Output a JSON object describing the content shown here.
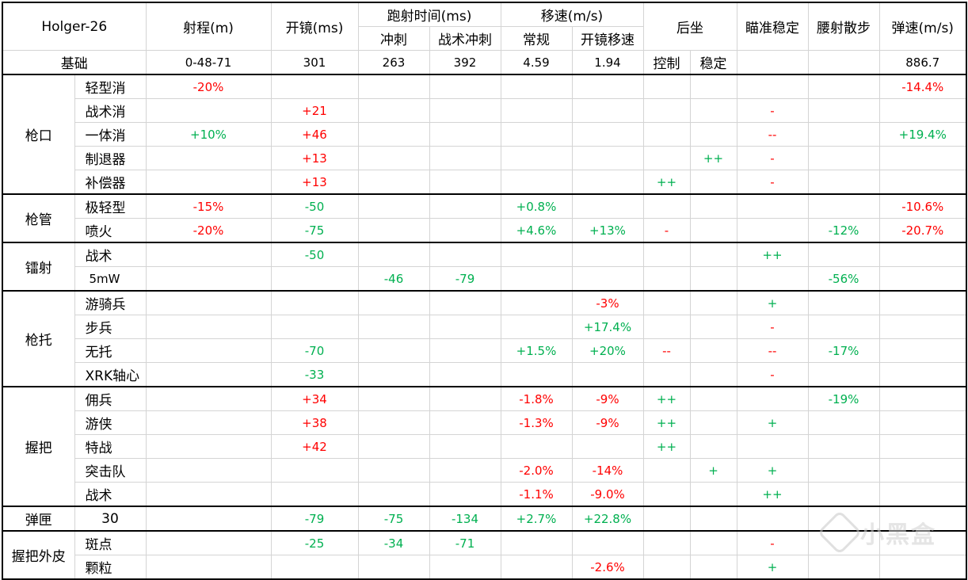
{
  "header": {
    "weapon": "Holger-26",
    "range": "射程(m)",
    "ads": "开镜(ms)",
    "sprint_to_fire": "跑射时间(ms)",
    "sprint": "冲刺",
    "tac_sprint": "战术冲刺",
    "move_speed": "移速(m/s)",
    "normal": "常规",
    "ads_move": "开镜移速",
    "recoil": "后坐",
    "aim_stability": "瞄准稳定",
    "hip_spread": "腰射散步",
    "bullet_velocity": "弹速(m/s)"
  },
  "base": {
    "label": "基础",
    "range": "0-48-71",
    "ads": "301",
    "sprint": "263",
    "tac_sprint": "392",
    "normal": "4.59",
    "ads_move": "1.94",
    "control": "控制",
    "stability": "稳定",
    "bullet_velocity": "886.7"
  },
  "colors": {
    "negative": "#ff0000",
    "positive": "#00b050"
  },
  "groups": [
    {
      "name": "枪口",
      "rows": [
        {
          "name": "轻型消",
          "cells": [
            [
              "-20%",
              "red"
            ],
            [
              "",
              ""
            ],
            [
              "",
              ""
            ],
            [
              "",
              ""
            ],
            [
              "",
              ""
            ],
            [
              "",
              ""
            ],
            [
              "",
              ""
            ],
            [
              "",
              ""
            ],
            [
              "",
              ""
            ],
            [
              "",
              ""
            ],
            [
              "-14.4%",
              "red"
            ]
          ]
        },
        {
          "name": "战术消",
          "cells": [
            [
              "",
              ""
            ],
            [
              "+21",
              "red"
            ],
            [
              "",
              ""
            ],
            [
              "",
              ""
            ],
            [
              "",
              ""
            ],
            [
              "",
              ""
            ],
            [
              "",
              ""
            ],
            [
              "",
              ""
            ],
            [
              "-",
              "red"
            ],
            [
              "",
              ""
            ],
            [
              "",
              ""
            ]
          ]
        },
        {
          "name": "一体消",
          "cells": [
            [
              "+10%",
              "green"
            ],
            [
              "+46",
              "red"
            ],
            [
              "",
              ""
            ],
            [
              "",
              ""
            ],
            [
              "",
              ""
            ],
            [
              "",
              ""
            ],
            [
              "",
              ""
            ],
            [
              "",
              ""
            ],
            [
              "--",
              "red"
            ],
            [
              "",
              ""
            ],
            [
              "+19.4%",
              "green"
            ]
          ]
        },
        {
          "name": "制退器",
          "cells": [
            [
              "",
              ""
            ],
            [
              "+13",
              "red"
            ],
            [
              "",
              ""
            ],
            [
              "",
              ""
            ],
            [
              "",
              ""
            ],
            [
              "",
              ""
            ],
            [
              "",
              ""
            ],
            [
              "++",
              "green"
            ],
            [
              "-",
              "red"
            ],
            [
              "",
              ""
            ],
            [
              "",
              ""
            ]
          ]
        },
        {
          "name": "补偿器",
          "cells": [
            [
              "",
              ""
            ],
            [
              "+13",
              "red"
            ],
            [
              "",
              ""
            ],
            [
              "",
              ""
            ],
            [
              "",
              ""
            ],
            [
              "",
              ""
            ],
            [
              "++",
              "green"
            ],
            [
              "",
              ""
            ],
            [
              "-",
              "red"
            ],
            [
              "",
              ""
            ],
            [
              "",
              ""
            ]
          ]
        }
      ]
    },
    {
      "name": "枪管",
      "rows": [
        {
          "name": "极轻型",
          "cells": [
            [
              "-15%",
              "red"
            ],
            [
              "-50",
              "green"
            ],
            [
              "",
              ""
            ],
            [
              "",
              ""
            ],
            [
              "+0.8%",
              "green"
            ],
            [
              "",
              ""
            ],
            [
              "",
              ""
            ],
            [
              "",
              ""
            ],
            [
              "",
              ""
            ],
            [
              "",
              ""
            ],
            [
              "-10.6%",
              "red"
            ]
          ]
        },
        {
          "name": "喷火",
          "cells": [
            [
              "-20%",
              "red"
            ],
            [
              "-75",
              "green"
            ],
            [
              "",
              ""
            ],
            [
              "",
              ""
            ],
            [
              "+4.6%",
              "green"
            ],
            [
              "+13%",
              "green"
            ],
            [
              "-",
              "red"
            ],
            [
              "",
              ""
            ],
            [
              "",
              ""
            ],
            [
              "-12%",
              "green"
            ],
            [
              "-20.7%",
              "red"
            ]
          ]
        }
      ]
    },
    {
      "name": "镭射",
      "rows": [
        {
          "name": "战术",
          "cells": [
            [
              "",
              ""
            ],
            [
              "-50",
              "green"
            ],
            [
              "",
              ""
            ],
            [
              "",
              ""
            ],
            [
              "",
              ""
            ],
            [
              "",
              ""
            ],
            [
              "",
              ""
            ],
            [
              "",
              ""
            ],
            [
              "++",
              "green"
            ],
            [
              "",
              ""
            ],
            [
              "",
              ""
            ]
          ]
        },
        {
          "name": "5mW",
          "small": true,
          "cells": [
            [
              "",
              ""
            ],
            [
              "",
              ""
            ],
            [
              "-46",
              "green"
            ],
            [
              "-79",
              "green"
            ],
            [
              "",
              ""
            ],
            [
              "",
              ""
            ],
            [
              "",
              ""
            ],
            [
              "",
              ""
            ],
            [
              "",
              ""
            ],
            [
              "-56%",
              "green"
            ],
            [
              "",
              ""
            ]
          ]
        }
      ]
    },
    {
      "name": "枪托",
      "rows": [
        {
          "name": "游骑兵",
          "cells": [
            [
              "",
              ""
            ],
            [
              "",
              ""
            ],
            [
              "",
              ""
            ],
            [
              "",
              ""
            ],
            [
              "",
              ""
            ],
            [
              "-3%",
              "red"
            ],
            [
              "",
              ""
            ],
            [
              "",
              ""
            ],
            [
              "+",
              "green"
            ],
            [
              "",
              ""
            ],
            [
              "",
              ""
            ]
          ]
        },
        {
          "name": "步兵",
          "cells": [
            [
              "",
              ""
            ],
            [
              "",
              ""
            ],
            [
              "",
              ""
            ],
            [
              "",
              ""
            ],
            [
              "",
              ""
            ],
            [
              "+17.4%",
              "green"
            ],
            [
              "",
              ""
            ],
            [
              "",
              ""
            ],
            [
              "-",
              "red"
            ],
            [
              "",
              ""
            ],
            [
              "",
              ""
            ]
          ]
        },
        {
          "name": "无托",
          "cells": [
            [
              "",
              ""
            ],
            [
              "-70",
              "green"
            ],
            [
              "",
              ""
            ],
            [
              "",
              ""
            ],
            [
              "+1.5%",
              "green"
            ],
            [
              "+20%",
              "green"
            ],
            [
              "--",
              "red"
            ],
            [
              "",
              ""
            ],
            [
              "--",
              "red"
            ],
            [
              "-17%",
              "green"
            ],
            [
              "",
              ""
            ]
          ]
        },
        {
          "name": "XRK轴心",
          "cells": [
            [
              "",
              ""
            ],
            [
              "-33",
              "green"
            ],
            [
              "",
              ""
            ],
            [
              "",
              ""
            ],
            [
              "",
              ""
            ],
            [
              "",
              ""
            ],
            [
              "",
              ""
            ],
            [
              "",
              ""
            ],
            [
              "-",
              "red"
            ],
            [
              "",
              ""
            ],
            [
              "",
              ""
            ]
          ]
        }
      ]
    },
    {
      "name": "握把",
      "rows": [
        {
          "name": "佣兵",
          "cells": [
            [
              "",
              ""
            ],
            [
              "+34",
              "red"
            ],
            [
              "",
              ""
            ],
            [
              "",
              ""
            ],
            [
              "-1.8%",
              "red"
            ],
            [
              "-9%",
              "red"
            ],
            [
              "++",
              "green"
            ],
            [
              "",
              ""
            ],
            [
              "",
              ""
            ],
            [
              "-19%",
              "green"
            ],
            [
              "",
              ""
            ]
          ]
        },
        {
          "name": "游侠",
          "cells": [
            [
              "",
              ""
            ],
            [
              "+38",
              "red"
            ],
            [
              "",
              ""
            ],
            [
              "",
              ""
            ],
            [
              "-1.3%",
              "red"
            ],
            [
              "-9%",
              "red"
            ],
            [
              "++",
              "green"
            ],
            [
              "",
              ""
            ],
            [
              "+",
              "green"
            ],
            [
              "",
              ""
            ],
            [
              "",
              ""
            ]
          ]
        },
        {
          "name": "特战",
          "cells": [
            [
              "",
              ""
            ],
            [
              "+42",
              "red"
            ],
            [
              "",
              ""
            ],
            [
              "",
              ""
            ],
            [
              "",
              ""
            ],
            [
              "",
              ""
            ],
            [
              "++",
              "green"
            ],
            [
              "",
              ""
            ],
            [
              "",
              ""
            ],
            [
              "",
              ""
            ],
            [
              "",
              ""
            ]
          ]
        },
        {
          "name": "突击队",
          "cells": [
            [
              "",
              ""
            ],
            [
              "",
              ""
            ],
            [
              "",
              ""
            ],
            [
              "",
              ""
            ],
            [
              "-2.0%",
              "red"
            ],
            [
              "-14%",
              "red"
            ],
            [
              "",
              ""
            ],
            [
              "+",
              "green"
            ],
            [
              "+",
              "green"
            ],
            [
              "",
              ""
            ],
            [
              "",
              ""
            ]
          ]
        },
        {
          "name": "战术",
          "cells": [
            [
              "",
              ""
            ],
            [
              "",
              ""
            ],
            [
              "",
              ""
            ],
            [
              "",
              ""
            ],
            [
              "-1.1%",
              "red"
            ],
            [
              "-9.0%",
              "red"
            ],
            [
              "",
              ""
            ],
            [
              "",
              ""
            ],
            [
              "++",
              "green"
            ],
            [
              "",
              ""
            ],
            [
              "",
              ""
            ]
          ]
        }
      ]
    },
    {
      "name": "弹匣",
      "rows": [
        {
          "name": "30",
          "center": true,
          "cells": [
            [
              "",
              ""
            ],
            [
              "-79",
              "green"
            ],
            [
              "-75",
              "green"
            ],
            [
              "-134",
              "green"
            ],
            [
              "+2.7%",
              "green"
            ],
            [
              "+22.8%",
              "green"
            ],
            [
              "",
              ""
            ],
            [
              "",
              ""
            ],
            [
              "",
              ""
            ],
            [
              "",
              ""
            ],
            [
              "",
              ""
            ]
          ]
        }
      ]
    },
    {
      "name": "握把外皮",
      "rows": [
        {
          "name": "斑点",
          "cells": [
            [
              "",
              ""
            ],
            [
              "-25",
              "green"
            ],
            [
              "-34",
              "green"
            ],
            [
              "-71",
              "green"
            ],
            [
              "",
              ""
            ],
            [
              "",
              ""
            ],
            [
              "",
              ""
            ],
            [
              "",
              ""
            ],
            [
              "-",
              "red"
            ],
            [
              "",
              ""
            ],
            [
              "",
              ""
            ]
          ]
        },
        {
          "name": "颗粒",
          "cells": [
            [
              "",
              ""
            ],
            [
              "",
              ""
            ],
            [
              "",
              ""
            ],
            [
              "",
              ""
            ],
            [
              "",
              ""
            ],
            [
              "-2.6%",
              "red"
            ],
            [
              "",
              ""
            ],
            [
              "",
              ""
            ],
            [
              "+",
              "green"
            ],
            [
              "",
              ""
            ],
            [
              "",
              ""
            ]
          ]
        }
      ]
    }
  ],
  "watermark": {
    "text": "小黑盒",
    "icon": "heybox-logo-icon"
  }
}
